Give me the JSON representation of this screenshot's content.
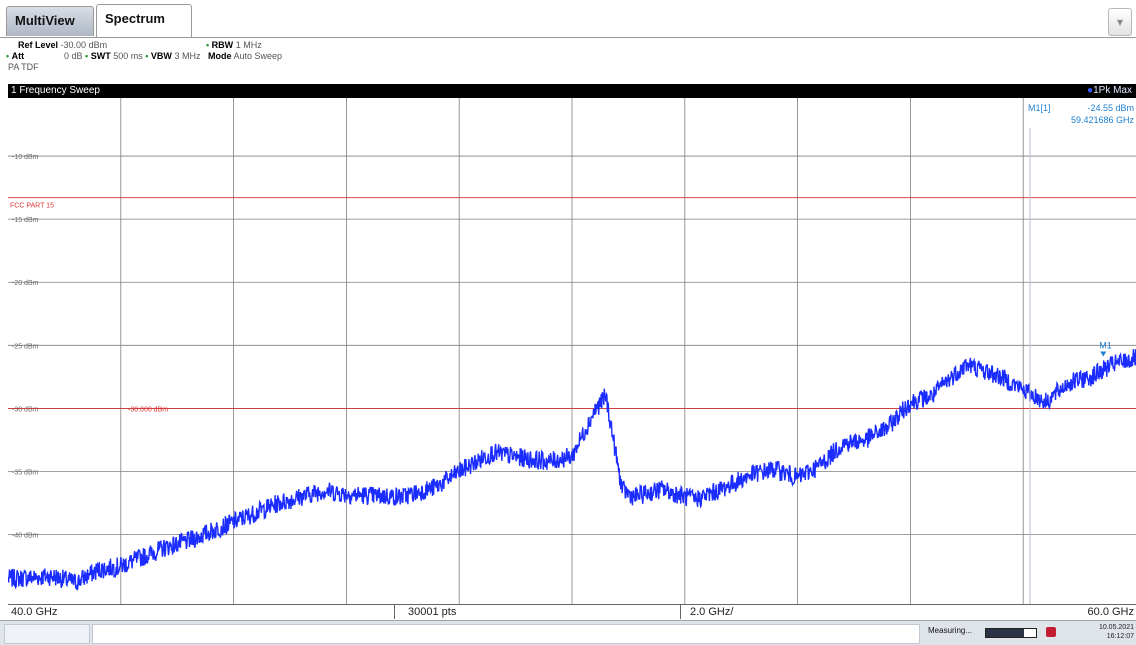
{
  "tabs": [
    {
      "label": "MultiView",
      "active": false
    },
    {
      "label": "Spectrum",
      "active": true
    }
  ],
  "settings": {
    "ref_level_label": "Ref Level",
    "ref_level_value": "-30.00 dBm",
    "att_label": "Att",
    "att_value": "0 dB",
    "swt_label": "SWT",
    "swt_value": "500 ms",
    "rbw_label": "RBW",
    "rbw_value": "1 MHz",
    "vbw_label": "VBW",
    "vbw_value": "3 MHz",
    "mode_label": "Mode",
    "mode_value": "Auto Sweep",
    "pa_label": "PA TDF"
  },
  "diagram": {
    "title": "1 Frequency Sweep",
    "trace_label": "1Pk Max",
    "trace_color": "#1a2cff"
  },
  "marker": {
    "name": "M1[1]",
    "level": "-24.55 dBm",
    "freq": "59.421686 GHz",
    "flag": "M1",
    "color": "#1f7fd0"
  },
  "limit_line": {
    "label": "FCC PART 15",
    "color": "#d33333"
  },
  "display_line": {
    "label": "-30.000 dBm",
    "color": "#d33333"
  },
  "x_axis": {
    "start": "40.0 GHz",
    "points": "30001 pts",
    "span_per_div": "2.0 GHz/",
    "stop": "60.0 GHz"
  },
  "statusbar": {
    "measuring": "Measuring...",
    "date": "10.05.2021",
    "time": "16:12:07",
    "progress": 0.75
  },
  "chart_data": {
    "type": "line",
    "x_unit": "GHz",
    "y_unit": "dBm",
    "xlim": [
      40.0,
      60.0
    ],
    "ylim": [
      -45.5,
      -5.4
    ],
    "grid": true,
    "y_ticks": [
      {
        "value": -10,
        "label": "-10 dBm"
      },
      {
        "value": -15,
        "label": "-15 dBm"
      },
      {
        "value": -20,
        "label": "-20 dBm"
      },
      {
        "value": -25,
        "label": "-25 dBm"
      },
      {
        "value": -30,
        "label": "-30 dBm"
      },
      {
        "value": -35,
        "label": "-35 dBm"
      },
      {
        "value": -40,
        "label": "-40 dBm"
      }
    ],
    "limit_y": -13.3,
    "display_line_y": -30.0,
    "marker_x": 59.42,
    "series": [
      {
        "name": "1Pk Max",
        "x": [
          40.0,
          40.8,
          41.2,
          41.6,
          42.0,
          42.8,
          43.2,
          44.0,
          44.8,
          45.6,
          46.0,
          46.4,
          47.0,
          47.6,
          48.0,
          48.6,
          49.2,
          49.6,
          50.0,
          50.4,
          50.6,
          50.85,
          50.9,
          51.1,
          51.6,
          52.0,
          52.2,
          52.6,
          53.2,
          53.6,
          54.0,
          54.4,
          54.8,
          55.2,
          55.6,
          56.0,
          56.4,
          56.6,
          57.0,
          57.6,
          58.0,
          58.4,
          58.8,
          59.2,
          59.6,
          60.0
        ],
        "y": [
          -43.5,
          -43.3,
          -43.8,
          -42.8,
          -42.5,
          -41.0,
          -40.5,
          -39.0,
          -37.5,
          -36.5,
          -36.8,
          -36.9,
          -37.0,
          -36.2,
          -35.0,
          -33.5,
          -34.0,
          -34.2,
          -33.8,
          -30.2,
          -29.0,
          -35.5,
          -36.5,
          -37.0,
          -36.4,
          -37.0,
          -37.2,
          -36.5,
          -35.2,
          -34.8,
          -35.5,
          -34.5,
          -32.8,
          -32.5,
          -31.5,
          -29.5,
          -29.0,
          -28.0,
          -26.5,
          -27.5,
          -28.5,
          -29.5,
          -28.0,
          -27.5,
          -26.5,
          -26.0
        ]
      }
    ]
  }
}
